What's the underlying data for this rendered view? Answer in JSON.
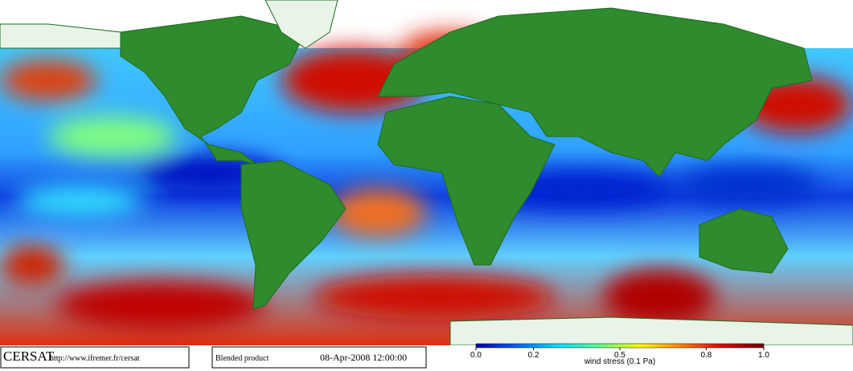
{
  "header": {
    "logo": "CERSAT",
    "url": "http://www.ifremer.fr/cersat",
    "product": "Blended product",
    "date": "08-Apr-2008 12:00:00"
  },
  "colorbar": {
    "label": "wind stress (0.1 Pa)",
    "range": [
      0,
      1
    ],
    "ticks": [
      {
        "value": 0,
        "label": "0.0"
      },
      0.2,
      0.5,
      0.8,
      {
        "value": 1,
        "label": "1.0"
      }
    ],
    "colors": [
      "#0000b0",
      "#0060ff",
      "#00e0ff",
      "#60ff90",
      "#ffff00",
      "#ff8000",
      "#e00000",
      "#700000"
    ]
  }
}
